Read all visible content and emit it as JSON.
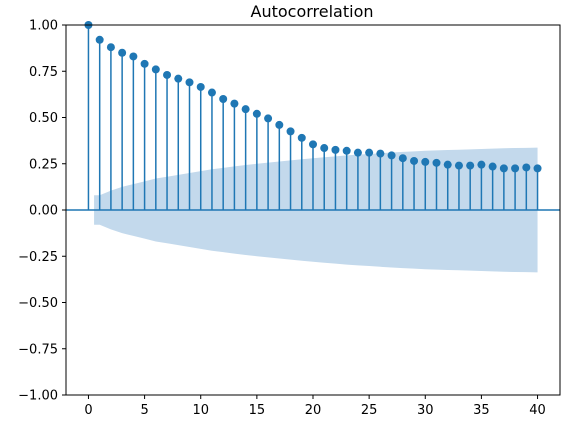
{
  "chart_data": {
    "type": "stem",
    "title": "Autocorrelation",
    "xlabel": "",
    "ylabel": "",
    "xlim": [
      -2,
      42
    ],
    "ylim": [
      -1.0,
      1.0
    ],
    "x_ticks": [
      0,
      5,
      10,
      15,
      20,
      25,
      30,
      35,
      40
    ],
    "x_tick_labels": [
      "0",
      "5",
      "10",
      "15",
      "20",
      "25",
      "30",
      "35",
      "40"
    ],
    "y_ticks": [
      -1.0,
      -0.75,
      -0.5,
      -0.25,
      0.0,
      0.25,
      0.5,
      0.75,
      1.0
    ],
    "y_tick_labels": [
      "−1.00",
      "−0.75",
      "−0.50",
      "−0.25",
      "0.00",
      "0.25",
      "0.50",
      "0.75",
      "1.00"
    ],
    "lags": [
      0,
      1,
      2,
      3,
      4,
      5,
      6,
      7,
      8,
      9,
      10,
      11,
      12,
      13,
      14,
      15,
      16,
      17,
      18,
      19,
      20,
      21,
      22,
      23,
      24,
      25,
      26,
      27,
      28,
      29,
      30,
      31,
      32,
      33,
      34,
      35,
      36,
      37,
      38,
      39,
      40
    ],
    "acf": [
      1.0,
      0.92,
      0.88,
      0.85,
      0.83,
      0.79,
      0.76,
      0.73,
      0.71,
      0.69,
      0.665,
      0.635,
      0.6,
      0.575,
      0.545,
      0.52,
      0.495,
      0.46,
      0.425,
      0.39,
      0.355,
      0.335,
      0.325,
      0.32,
      0.31,
      0.31,
      0.305,
      0.295,
      0.28,
      0.265,
      0.26,
      0.255,
      0.245,
      0.24,
      0.24,
      0.245,
      0.235,
      0.225,
      0.225,
      0.23,
      0.225
    ],
    "confint_upper": [
      0,
      0.08,
      0.105,
      0.125,
      0.14,
      0.155,
      0.17,
      0.18,
      0.19,
      0.2,
      0.21,
      0.22,
      0.228,
      0.236,
      0.243,
      0.25,
      0.256,
      0.262,
      0.268,
      0.274,
      0.28,
      0.285,
      0.29,
      0.295,
      0.299,
      0.303,
      0.307,
      0.311,
      0.314,
      0.317,
      0.32,
      0.322,
      0.324,
      0.326,
      0.328,
      0.33,
      0.332,
      0.334,
      0.335,
      0.336,
      0.337
    ],
    "grid": false,
    "colors": {
      "stem": "#1f77b4",
      "confint_fill": "#c3d9ec",
      "zero_line": "#1f77b4"
    }
  }
}
